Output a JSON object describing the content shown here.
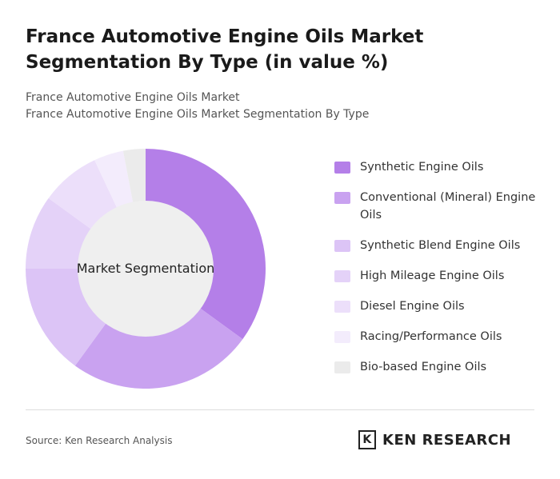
{
  "title": "France Automotive Engine Oils Market Segmentation By Type (in value %)",
  "subtitle_1": "France Automotive Engine Oils Market",
  "subtitle_2": "France Automotive Engine Oils Market Segmentation By Type",
  "source": "Source: Ken Research Analysis",
  "logo": "KEN RESEARCH",
  "chart_data": {
    "type": "pie",
    "center_label": "Market Segmentation",
    "categories": [
      "Synthetic Engine Oils",
      "Conventional (Mineral) Engine Oils",
      "Synthetic Blend Engine Oils",
      "High Mileage Engine Oils",
      "Diesel Engine Oils",
      "Racing/Performance Oils",
      "Bio-based Engine Oils"
    ],
    "values": [
      35,
      25,
      15,
      10,
      8,
      4,
      3
    ],
    "colors": [
      "#b47fe8",
      "#c9a2f0",
      "#dcc4f6",
      "#e4d2f8",
      "#ecdffa",
      "#f3ecfc",
      "#ebebeb"
    ]
  }
}
